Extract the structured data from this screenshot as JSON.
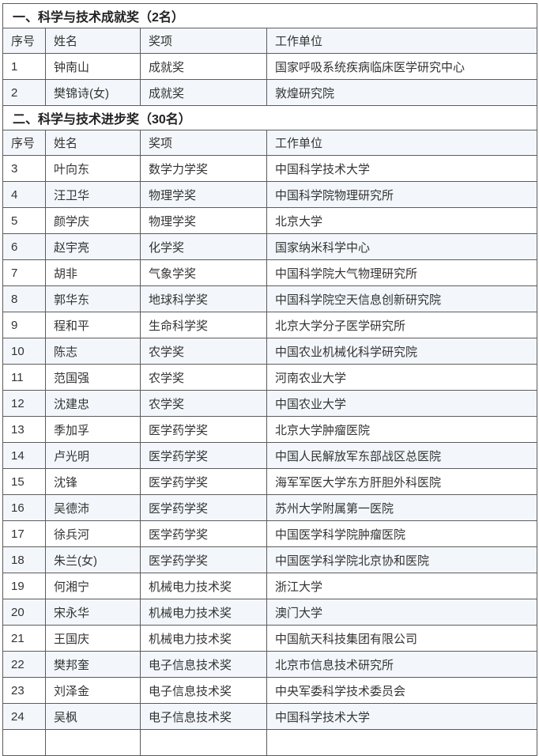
{
  "colors": {
    "text": "#333333",
    "title-text": "#222222",
    "border": "#5c5c5c",
    "stripe": "#f3f7fb",
    "row-bg": "#ffffff"
  },
  "table": {
    "partial_next_row_visible": true,
    "sections": [
      {
        "title": "一、科学与技术成就奖（2名）",
        "headers": [
          "序号",
          "姓名",
          "奖项",
          "工作单位"
        ],
        "rows": [
          {
            "no": "1",
            "name": "钟南山",
            "award": "成就奖",
            "org": "国家呼吸系统疾病临床医学研究中心"
          },
          {
            "no": "2",
            "name": "樊锦诗(女)",
            "award": "成就奖",
            "org": "敦煌研究院"
          }
        ]
      },
      {
        "title": "二、科学与技术进步奖（30名）",
        "headers": [
          "序号",
          "姓名",
          "奖项",
          "工作单位"
        ],
        "rows": [
          {
            "no": "3",
            "name": "叶向东",
            "award": "数学力学奖",
            "org": "中国科学技术大学"
          },
          {
            "no": "4",
            "name": "汪卫华",
            "award": "物理学奖",
            "org": "中国科学院物理研究所"
          },
          {
            "no": "5",
            "name": "颜学庆",
            "award": "物理学奖",
            "org": "北京大学"
          },
          {
            "no": "6",
            "name": "赵宇亮",
            "award": "化学奖",
            "org": "国家纳米科学中心"
          },
          {
            "no": "7",
            "name": "胡非",
            "award": "气象学奖",
            "org": "中国科学院大气物理研究所"
          },
          {
            "no": "8",
            "name": "郭华东",
            "award": "地球科学奖",
            "org": "中国科学院空天信息创新研究院"
          },
          {
            "no": "9",
            "name": "程和平",
            "award": "生命科学奖",
            "org": "北京大学分子医学研究所"
          },
          {
            "no": "10",
            "name": "陈志",
            "award": "农学奖",
            "org": "中国农业机械化科学研究院"
          },
          {
            "no": "11",
            "name": "范国强",
            "award": "农学奖",
            "org": "河南农业大学"
          },
          {
            "no": "12",
            "name": "沈建忠",
            "award": "农学奖",
            "org": "中国农业大学"
          },
          {
            "no": "13",
            "name": "季加孚",
            "award": "医学药学奖",
            "org": "北京大学肿瘤医院"
          },
          {
            "no": "14",
            "name": "卢光明",
            "award": "医学药学奖",
            "org": "中国人民解放军东部战区总医院"
          },
          {
            "no": "15",
            "name": "沈锋",
            "award": "医学药学奖",
            "org": "海军军医大学东方肝胆外科医院"
          },
          {
            "no": "16",
            "name": "吴德沛",
            "award": "医学药学奖",
            "org": "苏州大学附属第一医院"
          },
          {
            "no": "17",
            "name": "徐兵河",
            "award": "医学药学奖",
            "org": "中国医学科学院肿瘤医院"
          },
          {
            "no": "18",
            "name": "朱兰(女)",
            "award": "医学药学奖",
            "org": "中国医学科学院北京协和医院"
          },
          {
            "no": "19",
            "name": "何湘宁",
            "award": "机械电力技术奖",
            "org": "浙江大学"
          },
          {
            "no": "20",
            "name": "宋永华",
            "award": "机械电力技术奖",
            "org": "澳门大学"
          },
          {
            "no": "21",
            "name": "王国庆",
            "award": "机械电力技术奖",
            "org": "中国航天科技集团有限公司"
          },
          {
            "no": "22",
            "name": "樊邦奎",
            "award": "电子信息技术奖",
            "org": "北京市信息技术研究所"
          },
          {
            "no": "23",
            "name": "刘泽金",
            "award": "电子信息技术奖",
            "org": "中央军委科学技术委员会"
          },
          {
            "no": "24",
            "name": "吴枫",
            "award": "电子信息技术奖",
            "org": "中国科学技术大学"
          }
        ]
      }
    ]
  }
}
